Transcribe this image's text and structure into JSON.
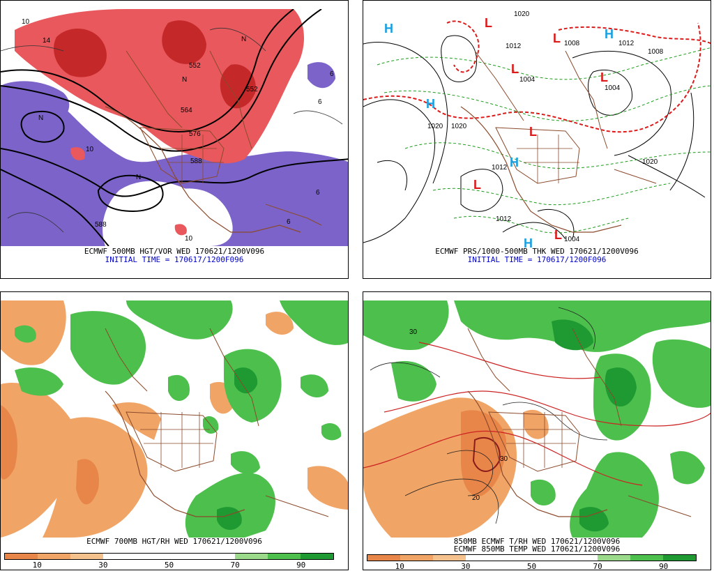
{
  "panels": [
    {
      "caption1": "ECMWF 500MB HGT/VOR WED 170621/1200V096",
      "caption2": "INITIAL TIME = 170617/1200F096",
      "contour_labels": [
        "552",
        "552",
        "564",
        "576",
        "588",
        "588",
        "N",
        "N",
        "N",
        "N",
        "10",
        "10",
        "10",
        "14",
        "6",
        "6",
        "6",
        "6"
      ]
    },
    {
      "caption1": "ECMWF PRS/1000-500MB THK WED 170621/1200V096",
      "caption2": "INITIAL TIME = 170617/1200F096",
      "pressure_labels": [
        "1020",
        "1020",
        "1020",
        "1012",
        "1012",
        "1004",
        "1004",
        "1004",
        "1008",
        "1008",
        "1012",
        "1012",
        "1020"
      ],
      "highs": [
        "H",
        "H",
        "H",
        "H",
        "H"
      ],
      "lows": [
        "L",
        "L",
        "L",
        "L",
        "L",
        "L",
        "L"
      ]
    },
    {
      "caption1": "ECMWF 700MB HGT/RH WED 170621/1200V096",
      "legend_ticks": [
        "10",
        "30",
        "50",
        "70",
        "90"
      ],
      "legend_colors": [
        "#e8864a",
        "#f0a466",
        "#f5c18c",
        "#ffffff",
        "#ffffff",
        "#ffffff",
        "#ffffff",
        "#9bd98b",
        "#4cbf4c",
        "#1f9a32"
      ]
    },
    {
      "caption1": "850MB ECMWF T/RH WED 170621/1200V096",
      "caption2": "ECMWF 850MB TEMP WED 170621/1200V096",
      "contour_labels": [
        "30",
        "30",
        "20"
      ],
      "legend_ticks": [
        "10",
        "30",
        "50",
        "70",
        "90"
      ],
      "legend_colors": [
        "#e8864a",
        "#f0a466",
        "#f5c18c",
        "#ffffff",
        "#ffffff",
        "#ffffff",
        "#ffffff",
        "#9bd98b",
        "#4cbf4c",
        "#1f9a32"
      ]
    }
  ]
}
